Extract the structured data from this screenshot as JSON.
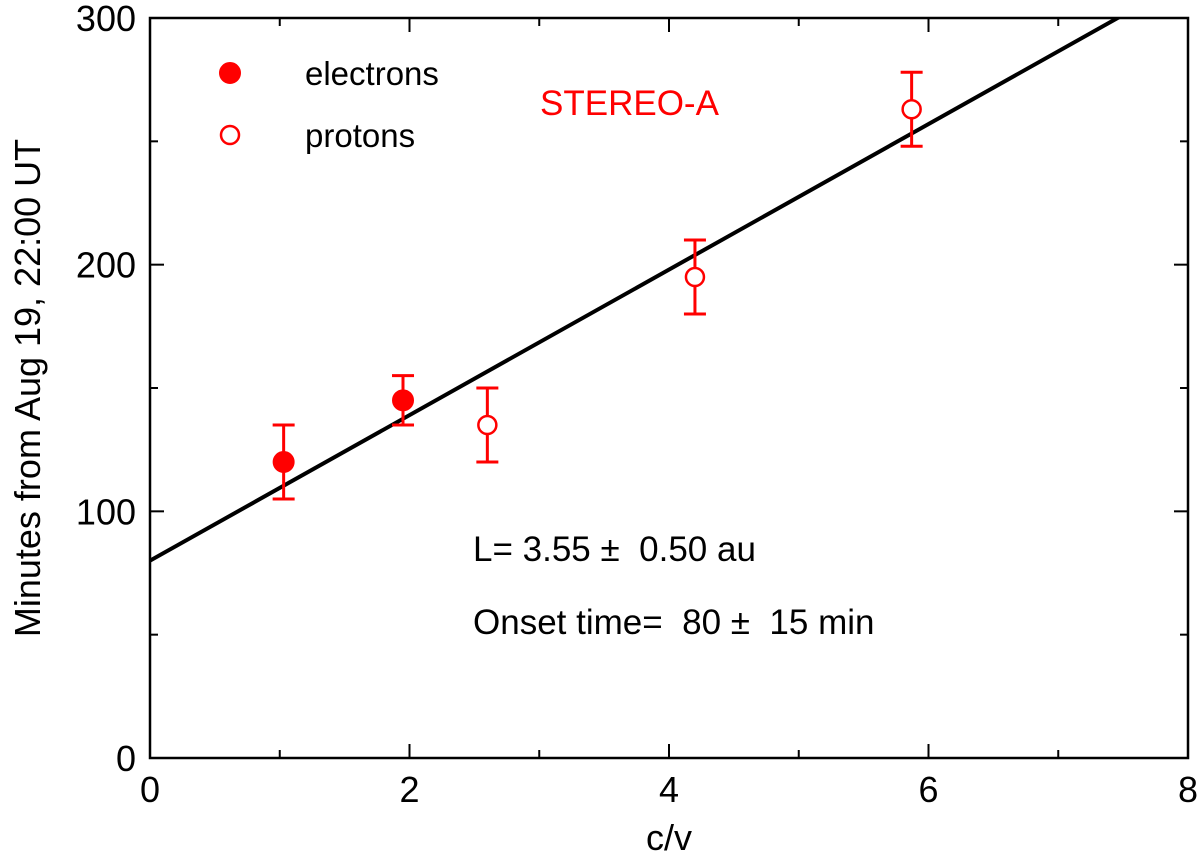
{
  "chart_data": {
    "type": "scatter",
    "title": "",
    "xlabel": "c/v",
    "ylabel": "Minutes from Aug 19, 22:00 UT",
    "xlim": [
      0,
      8
    ],
    "ylim": [
      0,
      300
    ],
    "x_ticks": [
      0,
      2,
      4,
      6,
      8
    ],
    "y_ticks": [
      0,
      100,
      200,
      300
    ],
    "x_minor_step": 1,
    "y_minor_step": 50,
    "grid": false,
    "instrument_label": "STEREO-A",
    "legend_position": "top-left",
    "series": [
      {
        "name": "electrons",
        "marker": "filled-circle",
        "color": "#ff0000",
        "points": [
          {
            "x": 1.03,
            "y": 120,
            "err": 15
          },
          {
            "x": 1.95,
            "y": 145,
            "err": 10
          }
        ]
      },
      {
        "name": "protons",
        "marker": "open-circle",
        "color": "#ff0000",
        "points": [
          {
            "x": 2.6,
            "y": 135,
            "err": 15
          },
          {
            "x": 4.2,
            "y": 195,
            "err": 15
          },
          {
            "x": 5.87,
            "y": 263,
            "err": 15
          }
        ]
      }
    ],
    "fit_line": {
      "color": "#000000",
      "intercept": 80,
      "slope": 29.5,
      "x_range": [
        0,
        8
      ]
    },
    "annotations": [
      "L= 3.55 ±  0.50 au",
      "Onset time=  80 ±  15 min"
    ]
  }
}
